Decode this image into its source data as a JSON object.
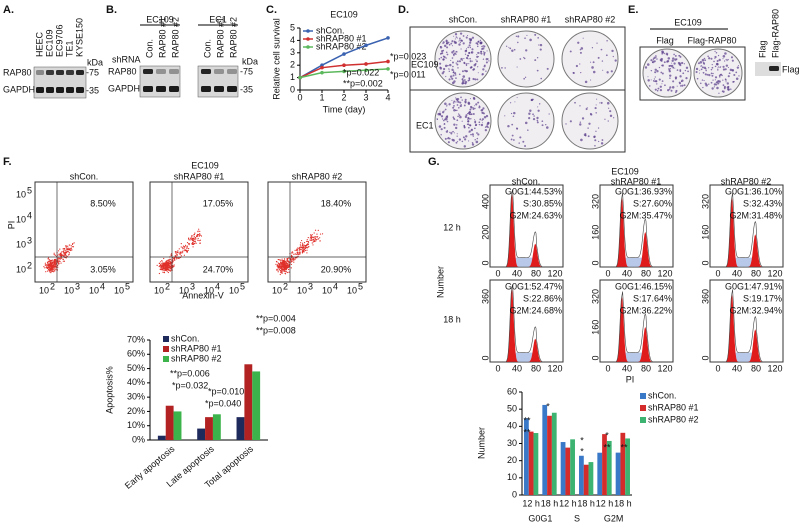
{
  "panel_labels": [
    "A.",
    "B.",
    "C.",
    "D.",
    "E.",
    "F.",
    "G."
  ],
  "blot_a": {
    "cell_lines": [
      "HEEC",
      "EC109",
      "EC9706",
      "TE1",
      "KYSE150"
    ],
    "rows": [
      "RAP80",
      "GAPDH"
    ],
    "kda": "kDa",
    "markers": [
      "-75",
      "-35"
    ]
  },
  "blot_b": {
    "groups": [
      "EC109",
      "EC1"
    ],
    "lanes": [
      "Con.",
      "RAP80 #1",
      "RAP80 #2"
    ],
    "shrna": "shRNA",
    "rows": [
      "RAP80",
      "GAPDH"
    ],
    "kda": "kDa",
    "markers": [
      "-75",
      "-35"
    ]
  },
  "colony_d": {
    "columns": [
      "shCon.",
      "shRAP80 #1",
      "shRAP80 #2"
    ],
    "rows": [
      "EC109",
      "EC1"
    ]
  },
  "colony_e": {
    "cell_line": "EC109",
    "columns": [
      "Flag",
      "Flag-RAP80"
    ],
    "blot_lanes": [
      "Flag",
      "Flag-RAP80"
    ],
    "blot_row": "Flag"
  },
  "flow_f": {
    "title": "EC109",
    "panels": [
      {
        "name": "shCon.",
        "upper_right": "8.50%",
        "lower_right": "3.05%"
      },
      {
        "name": "shRAP80 #1",
        "upper_right": "17.05%",
        "lower_right": "24.70%"
      },
      {
        "name": "shRAP80 #2",
        "upper_right": "18.40%",
        "lower_right": "20.90%"
      }
    ],
    "y_label": "PI",
    "x_label": "Annexin-V",
    "tick_base": "10",
    "tick_exps": [
      "2",
      "3",
      "4",
      "5"
    ]
  },
  "cycle_g": {
    "title": "EC109",
    "row_labels": [
      "12 h",
      "18 h"
    ],
    "xticks": [
      "0",
      "40",
      "80",
      "120"
    ],
    "y_label": "Number",
    "x_label": "PI",
    "columns": [
      {
        "name": "shCon.",
        "rows": [
          {
            "stats": [
              "G0G1:44.53%",
              "S:30.85%",
              "G2M:24.63%"
            ],
            "yticks": [
              "0",
              "200",
              "400"
            ]
          },
          {
            "stats": [
              "G0G1:52.47%",
              "S:22.86%",
              "G2M:24.68%"
            ],
            "yticks": [
              "0",
              "360"
            ]
          }
        ]
      },
      {
        "name": "shRAP80 #1",
        "rows": [
          {
            "stats": [
              "G0G1:36.93%",
              "S:27.60%",
              "G2M:35.47%"
            ],
            "yticks": [
              "0",
              "160",
              "320"
            ]
          },
          {
            "stats": [
              "G0G1:46.15%",
              "S:17.64%",
              "G2M:36.22%"
            ],
            "yticks": [
              "0",
              "160",
              "320"
            ]
          }
        ]
      },
      {
        "name": "shRAP80 #2",
        "rows": [
          {
            "stats": [
              "G0G1:36.10%",
              "S:32.43%",
              "G2M:31.48%"
            ],
            "yticks": [
              "0",
              "160",
              "320"
            ]
          },
          {
            "stats": [
              "G0G1:47.91%",
              "S:19.17%",
              "G2M:32.94%"
            ],
            "yticks": [
              "0",
              "360"
            ]
          }
        ]
      }
    ]
  },
  "chart_data": [
    {
      "type": "line",
      "title": "EC109",
      "x": [
        0,
        1,
        2,
        3,
        4
      ],
      "series": [
        {
          "name": "shCon.",
          "color": "#3a62b0",
          "values": [
            1,
            2.0,
            2.9,
            3.6,
            4.2
          ]
        },
        {
          "name": "shRAP80 #1",
          "color": "#d03030",
          "values": [
            1,
            1.8,
            2.0,
            2.1,
            2.3
          ]
        },
        {
          "name": "shRAP80 #2",
          "color": "#5cb85c",
          "values": [
            1,
            1.4,
            1.5,
            1.6,
            1.7
          ]
        }
      ],
      "xlim": [
        0,
        4
      ],
      "ylim": [
        0,
        5
      ],
      "xticks": [
        0,
        1,
        2,
        3,
        4
      ],
      "yticks": [
        0,
        1,
        2,
        3,
        4,
        5
      ],
      "x_label": "Time (day)",
      "y_label": "Relative cell survival",
      "annotations": [
        "*p=0.022",
        "*p=0.023",
        "**p=0.002",
        "*p=0.011"
      ]
    },
    {
      "type": "bar",
      "categories": [
        "Early apoptosis",
        "Late apoptosis",
        "Total apoptosis"
      ],
      "series": [
        {
          "name": "shCon.",
          "color": "#1f2a5c",
          "values": [
            3,
            8,
            16
          ]
        },
        {
          "name": "shRAP80 #1",
          "color": "#b22222",
          "values": [
            24,
            16,
            53
          ]
        },
        {
          "name": "shRAP80 #2",
          "color": "#3cb44b",
          "values": [
            20,
            18,
            48
          ]
        }
      ],
      "ylim": [
        0,
        70
      ],
      "yticks": [
        {
          "value": 0,
          "label": "0%"
        },
        {
          "value": 10,
          "label": "10%"
        },
        {
          "value": 20,
          "label": "20%"
        },
        {
          "value": 30,
          "label": "30%"
        },
        {
          "value": 40,
          "label": "40%"
        },
        {
          "value": 50,
          "label": "50%"
        },
        {
          "value": 60,
          "label": "60%"
        },
        {
          "value": 70,
          "label": "70%"
        }
      ],
      "y_label": "Apoptosis%",
      "annotations": [
        "*p=0.032",
        "**p=0.006",
        "*p=0.040",
        "*p=0.010",
        "**p=0.008",
        "**p=0.004"
      ]
    },
    {
      "type": "bar",
      "categories": [
        "12 h",
        "18 h",
        "12 h",
        "18 h",
        "12 h",
        "18 h"
      ],
      "groups": [
        "G0G1",
        "S",
        "G2M"
      ],
      "series": [
        {
          "name": "shCon.",
          "color": "#3a78c8",
          "values": [
            44.53,
            52.47,
            30.85,
            22.86,
            24.63,
            24.68
          ]
        },
        {
          "name": "shRAP80 #1",
          "color": "#d42b2b",
          "values": [
            36.93,
            46.15,
            27.6,
            17.64,
            35.47,
            36.22
          ]
        },
        {
          "name": "shRAP80 #2",
          "color": "#3cb371",
          "values": [
            36.1,
            47.91,
            32.43,
            19.17,
            31.48,
            32.94
          ]
        }
      ],
      "ylim": [
        0,
        60
      ],
      "yticks": [
        0,
        10,
        20,
        30,
        40,
        50,
        60
      ],
      "y_label": "Number",
      "annotations": [
        "**",
        "**",
        "*",
        "*",
        "*",
        "*",
        "**",
        "**"
      ]
    }
  ]
}
